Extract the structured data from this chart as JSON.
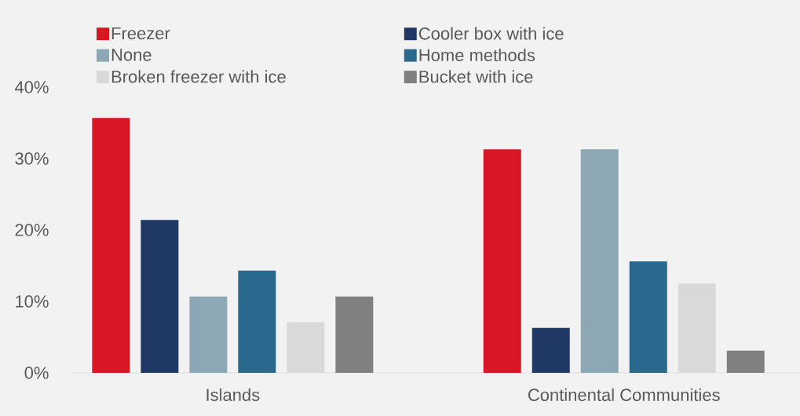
{
  "chart_data": {
    "type": "bar",
    "categories": [
      "Islands",
      "Continental Communities"
    ],
    "series": [
      {
        "name": "Freezer",
        "color": "#d71824",
        "values": [
          35.7,
          31.3
        ]
      },
      {
        "name": "Cooler box with ice",
        "color": "#203864",
        "values": [
          21.4,
          6.3
        ]
      },
      {
        "name": "None",
        "color": "#8ca8b4",
        "values": [
          10.7,
          31.3
        ]
      },
      {
        "name": "Home methods",
        "color": "#2b688e",
        "values": [
          14.3,
          15.6
        ]
      },
      {
        "name": "Broken freezer with ice",
        "color": "#d9d9d9",
        "values": [
          7.1,
          12.5
        ]
      },
      {
        "name": "Bucket with ice",
        "color": "#808080",
        "values": [
          10.7,
          3.1
        ]
      }
    ],
    "ylim": [
      0,
      40
    ],
    "yticks": [
      {
        "value": 0,
        "label": "0%"
      },
      {
        "value": 10,
        "label": "10%"
      },
      {
        "value": 20,
        "label": "20%"
      },
      {
        "value": 30,
        "label": "30%"
      },
      {
        "value": 40,
        "label": "40%"
      }
    ],
    "legend": "top"
  }
}
